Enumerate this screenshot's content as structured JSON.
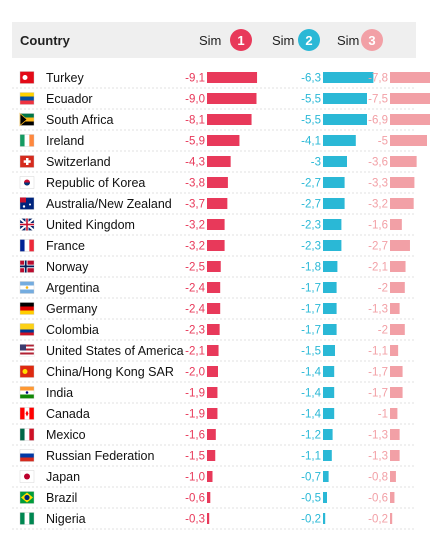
{
  "header": {
    "country_label": "Country",
    "sims": [
      {
        "label": "Sim",
        "number": "1",
        "color": "#e8395a"
      },
      {
        "label": "Sim",
        "number": "2",
        "color": "#2ab8d6"
      },
      {
        "label": "Sim",
        "number": "3",
        "color": "#f2a0a6"
      }
    ]
  },
  "colors": {
    "sim1_bar": "#e8395a",
    "sim2_bar": "#2ab8d6",
    "sim3_bar": "#f2a0a6",
    "header_bg": "#efefef",
    "row_divider": "#d9d9d9"
  },
  "chart_data": {
    "type": "bar",
    "orientation": "horizontal",
    "categories": [
      "Turkey",
      "Ecuador",
      "South Africa",
      "Ireland",
      "Switzerland",
      "Republic of Korea",
      "Australia/New Zealand",
      "United Kingdom",
      "France",
      "Norway",
      "Argentina",
      "Germany",
      "Colombia",
      "United States of America",
      "China/Hong Kong SAR",
      "India",
      "Canada",
      "Mexico",
      "Russian Federation",
      "Japan",
      "Brazil",
      "Nigeria"
    ],
    "flag_icons": [
      "turkey-flag-icon",
      "ecuador-flag-icon",
      "south-africa-flag-icon",
      "ireland-flag-icon",
      "switzerland-flag-icon",
      "korea-flag-icon",
      "australia-flag-icon",
      "uk-flag-icon",
      "france-flag-icon",
      "norway-flag-icon",
      "argentina-flag-icon",
      "germany-flag-icon",
      "colombia-flag-icon",
      "usa-flag-icon",
      "china-flag-icon",
      "india-flag-icon",
      "canada-flag-icon",
      "mexico-flag-icon",
      "russia-flag-icon",
      "japan-flag-icon",
      "brazil-flag-icon",
      "nigeria-flag-icon"
    ],
    "series": [
      {
        "name": "Sim 1",
        "values": [
          -9.1,
          -9.0,
          -8.1,
          -5.9,
          -4.3,
          -3.8,
          -3.7,
          -3.2,
          -3.2,
          -2.5,
          -2.4,
          -2.4,
          -2.3,
          -2.1,
          -2.0,
          -1.9,
          -1.9,
          -1.6,
          -1.5,
          -1.0,
          -0.6,
          -0.3
        ],
        "labels": [
          "-9,1",
          "-9,0",
          "-8,1",
          "-5,9",
          "-4,3",
          "-3,8",
          "-3,7",
          "-3,2",
          "-3,2",
          "-2,5",
          "-2,4",
          "-2,4",
          "-2,3",
          "-2,1",
          "-2,0",
          "-1,9",
          "-1,9",
          "-1,6",
          "-1,5",
          "-1,0",
          "-0,6",
          "-0,3"
        ]
      },
      {
        "name": "Sim 2",
        "values": [
          -6.3,
          -5.5,
          -5.5,
          -4.1,
          -3.0,
          -2.7,
          -2.7,
          -2.3,
          -2.3,
          -1.8,
          -1.7,
          -1.7,
          -1.7,
          -1.5,
          -1.4,
          -1.4,
          -1.4,
          -1.2,
          -1.1,
          -0.7,
          -0.5,
          -0.2
        ],
        "labels": [
          "-6,3",
          "-5,5",
          "-5,5",
          "-4,1",
          "-3",
          "-2,7",
          "-2,7",
          "-2,3",
          "-2,3",
          "-1,8",
          "-1,7",
          "-1,7",
          "-1,7",
          "-1,5",
          "-1,4",
          "-1,4",
          "-1,4",
          "-1,2",
          "-1,1",
          "-0,7",
          "-0,5",
          "-0,2"
        ]
      },
      {
        "name": "Sim 3",
        "values": [
          -7.8,
          -7.5,
          -6.9,
          -5.0,
          -3.6,
          -3.3,
          -3.2,
          -1.6,
          -2.7,
          -2.1,
          -2.0,
          -1.3,
          -2.0,
          -1.1,
          -1.7,
          -1.7,
          -1.0,
          -1.3,
          -1.3,
          -0.8,
          -0.6,
          -0.2
        ],
        "labels": [
          "-7,8",
          "-7,5",
          "-6,9",
          "-5",
          "-3,6",
          "-3,3",
          "-3,2",
          "-1,6",
          "-2,7",
          "-2,1",
          "-2",
          "-1,3",
          "-2",
          "-1,1",
          "-1,7",
          "-1,7",
          "-1",
          "-1,3",
          "-1,3",
          "-0,8",
          "-0,6",
          "-0,2"
        ]
      }
    ]
  }
}
